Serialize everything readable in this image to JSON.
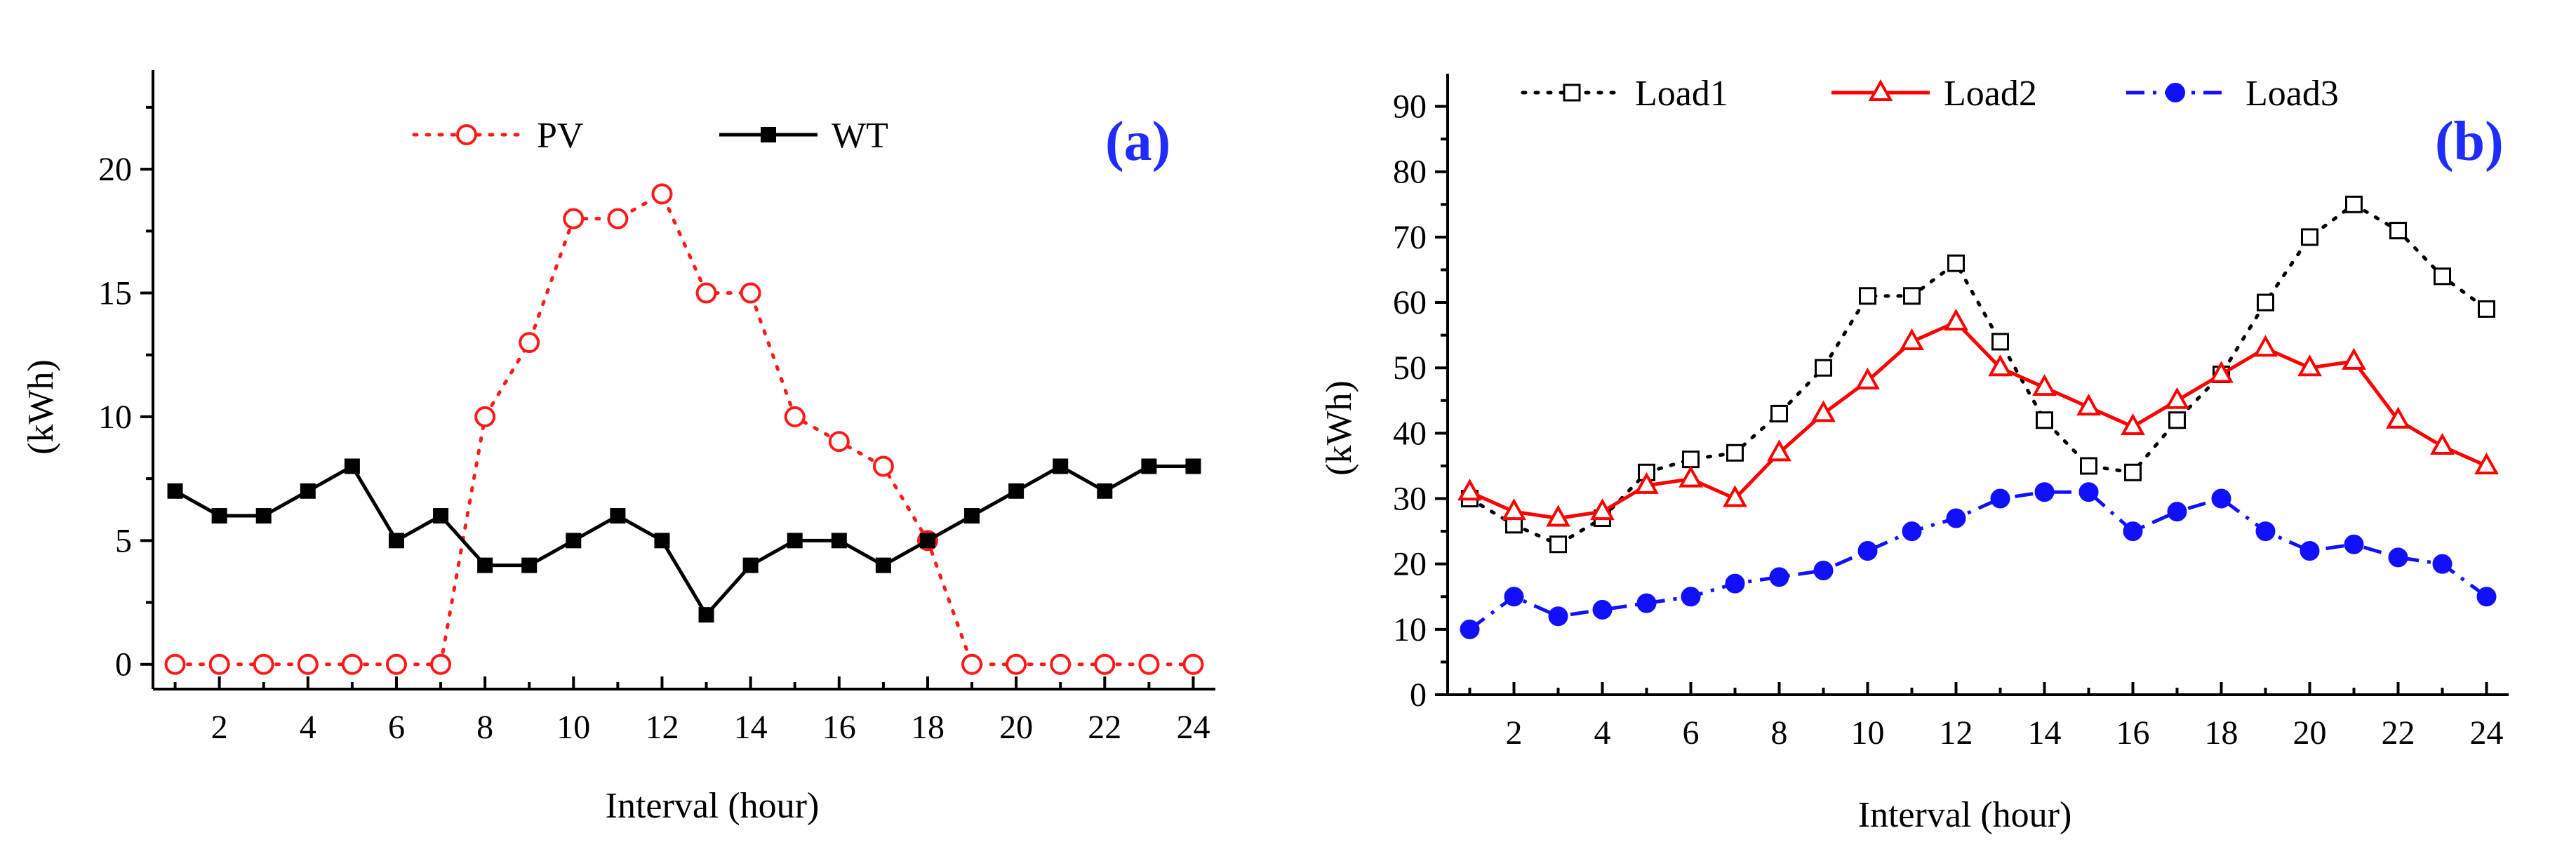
{
  "chart_data": [
    {
      "panel_label": "(a)",
      "type": "line",
      "xlabel": "Interval (hour)",
      "ylabel": "(kWh)",
      "xlim": [
        0.5,
        24.5
      ],
      "ylim": [
        -1,
        24
      ],
      "x_ticks": [
        2,
        4,
        6,
        8,
        10,
        12,
        14,
        16,
        18,
        20,
        22,
        24
      ],
      "y_ticks": [
        0,
        5,
        10,
        15,
        20
      ],
      "x": [
        1,
        2,
        3,
        4,
        5,
        6,
        7,
        8,
        9,
        10,
        11,
        12,
        13,
        14,
        15,
        16,
        17,
        18,
        19,
        20,
        21,
        22,
        23,
        24
      ],
      "series": [
        {
          "name": "PV",
          "color": "#ff1a1a",
          "line_style": "dotted",
          "marker": "open-circle",
          "values": [
            0,
            0,
            0,
            0,
            0,
            0,
            0,
            10,
            13,
            18,
            18,
            19,
            15,
            15,
            10,
            9,
            8,
            5,
            0,
            0,
            0,
            0,
            0,
            0
          ]
        },
        {
          "name": "WT",
          "color": "#000000",
          "line_style": "solid",
          "marker": "filled-square",
          "values": [
            7,
            6,
            6,
            7,
            8,
            5,
            6,
            4,
            4,
            5,
            6,
            5,
            2,
            4,
            5,
            5,
            4,
            5,
            6,
            7,
            8,
            7,
            8,
            8
          ]
        }
      ]
    },
    {
      "panel_label": "(b)",
      "type": "line",
      "xlabel": "Interval (hour)",
      "ylabel": "(kWh)",
      "xlim": [
        0.5,
        24.5
      ],
      "ylim": [
        0,
        95
      ],
      "x_ticks": [
        2,
        4,
        6,
        8,
        10,
        12,
        14,
        16,
        18,
        20,
        22,
        24
      ],
      "y_ticks": [
        0,
        10,
        20,
        30,
        40,
        50,
        60,
        70,
        80,
        90
      ],
      "x": [
        1,
        2,
        3,
        4,
        5,
        6,
        7,
        8,
        9,
        10,
        11,
        12,
        13,
        14,
        15,
        16,
        17,
        18,
        19,
        20,
        21,
        22,
        23,
        24
      ],
      "series": [
        {
          "name": "Load1",
          "color": "#000000",
          "line_style": "dotted",
          "marker": "open-square",
          "values": [
            30,
            26,
            23,
            27,
            34,
            36,
            37,
            43,
            50,
            61,
            61,
            66,
            54,
            42,
            35,
            34,
            42,
            49,
            60,
            70,
            75,
            71,
            64,
            59
          ]
        },
        {
          "name": "Load2",
          "color": "#ff0000",
          "line_style": "solid",
          "marker": "open-triangle",
          "values": [
            31,
            28,
            27,
            28,
            32,
            33,
            30,
            37,
            43,
            48,
            54,
            57,
            50,
            47,
            44,
            41,
            45,
            49,
            53,
            50,
            51,
            42,
            38,
            35
          ]
        },
        {
          "name": "Load3",
          "color": "#1010ff",
          "line_style": "dashdot",
          "marker": "filled-circle",
          "values": [
            10,
            15,
            12,
            13,
            14,
            15,
            17,
            18,
            19,
            22,
            25,
            27,
            30,
            31,
            31,
            25,
            28,
            30,
            25,
            22,
            23,
            21,
            20,
            15
          ]
        }
      ]
    }
  ]
}
